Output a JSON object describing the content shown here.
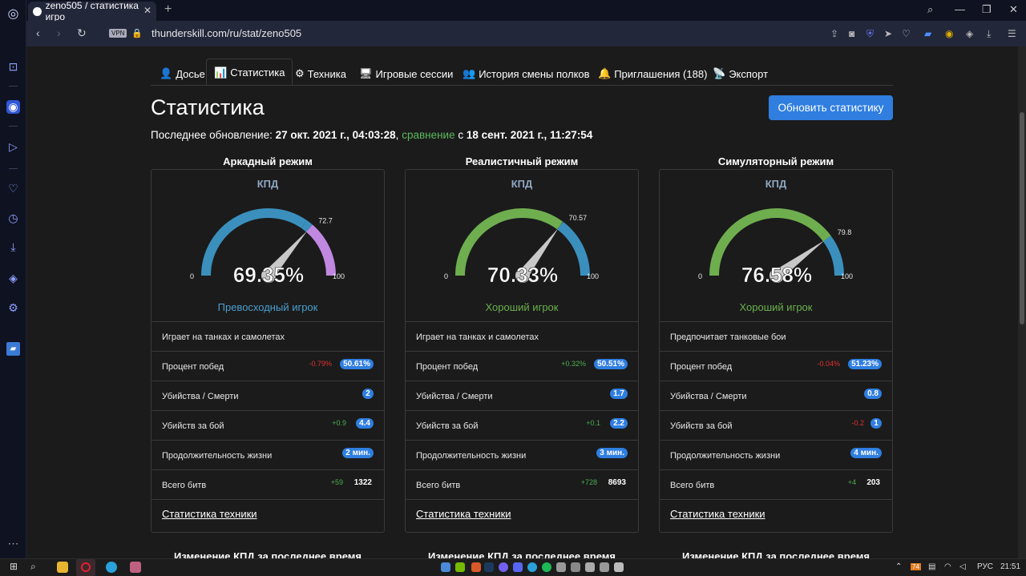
{
  "browser": {
    "tab_title": "zeno505 / статистика игро",
    "tab_close": "✕",
    "new_tab": "+",
    "vpn_label": "VPN",
    "url": "thunderskill.com/ru/stat/zeno505"
  },
  "nav_tabs": [
    {
      "icon": "👤",
      "label": "Досье"
    },
    {
      "icon": "📊",
      "label": "Статистика"
    },
    {
      "icon": "⚙",
      "label": "Техника"
    },
    {
      "icon": "🖥",
      "label": "Игровые сессии"
    },
    {
      "icon": "👥",
      "label": "История смены полков"
    },
    {
      "icon": "🔔",
      "label": "Приглашения (188)"
    },
    {
      "icon": "📡",
      "label": "Экспорт"
    }
  ],
  "page": {
    "title": "Статистика",
    "refresh_button": "Обновить статистику",
    "last_update_prefix": "Последнее обновление: ",
    "last_update_date": "27 окт. 2021 г., 04:03:28",
    "comma": ",",
    "compare_link": "сравнение",
    "compare_with": " с ",
    "compare_date": "18 сент. 2021 г., 11:27:54"
  },
  "modes": [
    {
      "title": "Аркадный режим",
      "kpd_label": "КПД",
      "kpd_value": "69.35%",
      "kpd": 69.35,
      "marker": 72.7,
      "marker_label": "72.7",
      "gauge_min": "0",
      "gauge_max": "100",
      "rank": "Превосходный игрок",
      "rank_color": "#4a9fd0",
      "arc_color": "#3b8fbd",
      "high_color": "#c088e0",
      "play_style": "Играет на танках и самолетах",
      "stats": [
        {
          "label": "Процент побед",
          "delta": "-0.79%",
          "delta_color": "#e03030",
          "value": "50.61%"
        },
        {
          "label": "Убийства / Смерти",
          "delta": "",
          "delta_color": "",
          "value": "2"
        },
        {
          "label": "Убийств за бой",
          "delta": "+0.9",
          "delta_color": "#4caf50",
          "value": "4.4"
        },
        {
          "label": "Продолжительность жизни",
          "delta": "",
          "delta_color": "",
          "value": "2 мин."
        }
      ],
      "battles": {
        "label": "Всего битв",
        "delta": "+59",
        "value": "1322"
      },
      "vehicles_link": "Статистика техники",
      "next_section": "Изменение КПД за последнее время"
    },
    {
      "title": "Реалистичный режим",
      "kpd_label": "КПД",
      "kpd_value": "70.33%",
      "kpd": 70.33,
      "marker": 70.57,
      "marker_label": "70.57",
      "gauge_min": "0",
      "gauge_max": "100",
      "rank": "Хороший игрок",
      "rank_color": "#6ab04c",
      "arc_color": "#6fae4f",
      "high_color": "#3b8fbd",
      "play_style": "Играет на танках и самолетах",
      "stats": [
        {
          "label": "Процент побед",
          "delta": "+0.32%",
          "delta_color": "#4caf50",
          "value": "50.51%"
        },
        {
          "label": "Убийства / Смерти",
          "delta": "",
          "delta_color": "",
          "value": "1.7"
        },
        {
          "label": "Убийств за бой",
          "delta": "+0.1",
          "delta_color": "#4caf50",
          "value": "2.2"
        },
        {
          "label": "Продолжительность жизни",
          "delta": "",
          "delta_color": "",
          "value": "3 мин."
        }
      ],
      "battles": {
        "label": "Всего битв",
        "delta": "+728",
        "value": "8693"
      },
      "vehicles_link": "Статистика техники",
      "next_section": "Изменение КПД за последнее время"
    },
    {
      "title": "Симуляторный режим",
      "kpd_label": "КПД",
      "kpd_value": "76.58%",
      "kpd": 76.58,
      "marker": 79.8,
      "marker_label": "79.8",
      "gauge_min": "0",
      "gauge_max": "100",
      "rank": "Хороший игрок",
      "rank_color": "#6ab04c",
      "arc_color": "#6fae4f",
      "high_color": "#3b8fbd",
      "play_style": "Предпочитает танковые бои",
      "stats": [
        {
          "label": "Процент побед",
          "delta": "-0.04%",
          "delta_color": "#e03030",
          "value": "51.23%"
        },
        {
          "label": "Убийства / Смерти",
          "delta": "",
          "delta_color": "",
          "value": "0.8"
        },
        {
          "label": "Убийств за бой",
          "delta": "-0.2",
          "delta_color": "#e03030",
          "value": "1"
        },
        {
          "label": "Продолжительность жизни",
          "delta": "",
          "delta_color": "",
          "value": "4 мин."
        }
      ],
      "battles": {
        "label": "Всего битв",
        "delta": "+4",
        "value": "203"
      },
      "vehicles_link": "Статистика техники",
      "next_section": "Изменение КПД за последнее время"
    }
  ],
  "taskbar": {
    "lang": "РУС",
    "time": "21:51",
    "notif_count": "74"
  }
}
